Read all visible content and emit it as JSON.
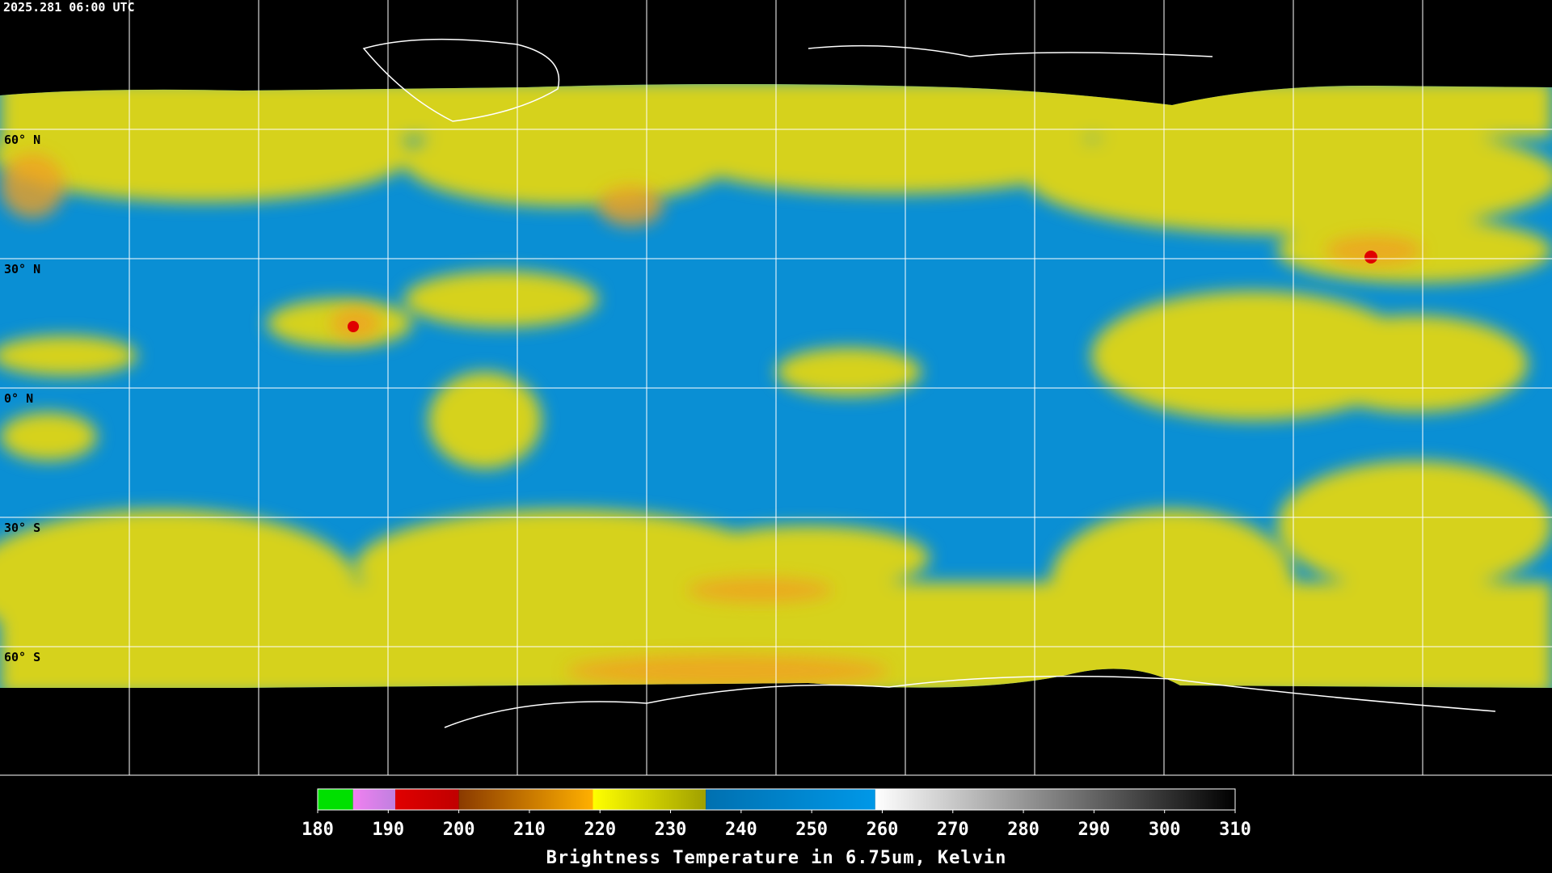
{
  "timestamp": "2025.281 06:00 UTC",
  "lat_labels": [
    "60° N",
    "30° N",
    "0° N",
    "30° S",
    "60° S"
  ],
  "colorbar": {
    "title": "Brightness Temperature in 6.75um, Kelvin",
    "range": [
      180,
      310
    ],
    "ticks": [
      180,
      190,
      200,
      210,
      220,
      230,
      240,
      250,
      260,
      270,
      280,
      290,
      300,
      310
    ],
    "segments": [
      {
        "from": 180,
        "to": 185,
        "colors": [
          "#00e000",
          "#00e000"
        ]
      },
      {
        "from": 185,
        "to": 191,
        "colors": [
          "#f080f0",
          "#c080e0"
        ]
      },
      {
        "from": 191,
        "to": 200,
        "colors": [
          "#e00000",
          "#c00000"
        ]
      },
      {
        "from": 200,
        "to": 219,
        "colors": [
          "#8a3a00",
          "#ffb000"
        ]
      },
      {
        "from": 219,
        "to": 235,
        "colors": [
          "#ffff00",
          "#a0a000"
        ]
      },
      {
        "from": 235,
        "to": 259,
        "colors": [
          "#0070b0",
          "#0098e8"
        ]
      },
      {
        "from": 259,
        "to": 310,
        "colors": [
          "#ffffff",
          "#000000"
        ]
      }
    ]
  }
}
